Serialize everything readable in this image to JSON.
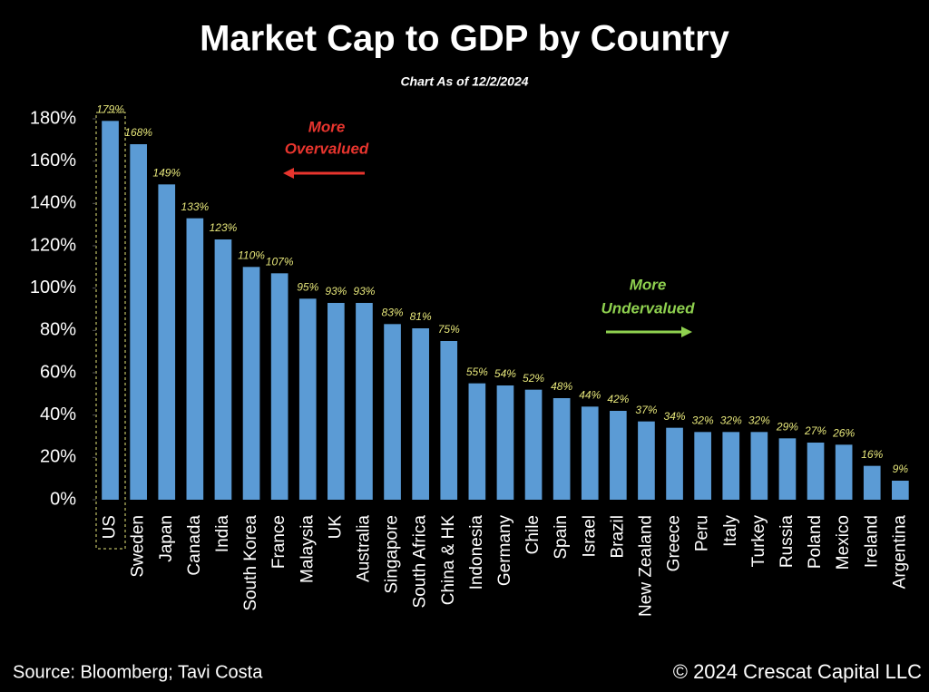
{
  "chart_data": {
    "type": "bar",
    "title": "Market Cap to GDP by Country",
    "subtitle": "Chart As of 12/2/2024",
    "categories": [
      "US",
      "Sweden",
      "Japan",
      "Canada",
      "India",
      "South Korea",
      "France",
      "Malaysia",
      "UK",
      "Australia",
      "Singapore",
      "South Africa",
      "China & HK",
      "Indonesia",
      "Germany",
      "Chile",
      "Spain",
      "Israel",
      "Brazil",
      "New Zealand",
      "Greece",
      "Peru",
      "Italy",
      "Turkey",
      "Russia",
      "Poland",
      "Mexico",
      "Ireland",
      "Argentina"
    ],
    "values": [
      179,
      168,
      149,
      133,
      123,
      110,
      107,
      95,
      93,
      93,
      83,
      81,
      75,
      55,
      54,
      52,
      48,
      44,
      42,
      37,
      34,
      32,
      32,
      32,
      29,
      27,
      26,
      16,
      9
    ],
    "value_labels": [
      "179%",
      "168%",
      "149%",
      "133%",
      "123%",
      "110%",
      "107%",
      "95%",
      "93%",
      "93%",
      "83%",
      "81%",
      "75%",
      "55%",
      "54%",
      "52%",
      "48%",
      "44%",
      "42%",
      "37%",
      "34%",
      "32%",
      "32%",
      "32%",
      "29%",
      "27%",
      "26%",
      "16%",
      "9%"
    ],
    "color": "#5b9bd5",
    "value_label_color": "#e6e67a",
    "ylim": [
      0,
      180
    ],
    "yticks": [
      {
        "value": 0,
        "label": "0%"
      },
      {
        "value": 20,
        "label": "20%"
      },
      {
        "value": 40,
        "label": "40%"
      },
      {
        "value": 60,
        "label": "60%"
      },
      {
        "value": 80,
        "label": "80%"
      },
      {
        "value": 100,
        "label": "100%"
      },
      {
        "value": 120,
        "label": "120%"
      },
      {
        "value": 140,
        "label": "140%"
      },
      {
        "value": 160,
        "label": "160%"
      },
      {
        "value": 180,
        "label": "180%"
      }
    ],
    "grid": false,
    "annotations": [
      {
        "lines": [
          "More",
          "Overvalued"
        ],
        "color": "#e8352e"
      },
      {
        "lines": [
          "More",
          "Undervalued"
        ],
        "color": "#8fd14f"
      }
    ],
    "source": "Source: Bloomberg; Tavi Costa",
    "copyright": "© 2024 Crescat Capital LLC"
  }
}
